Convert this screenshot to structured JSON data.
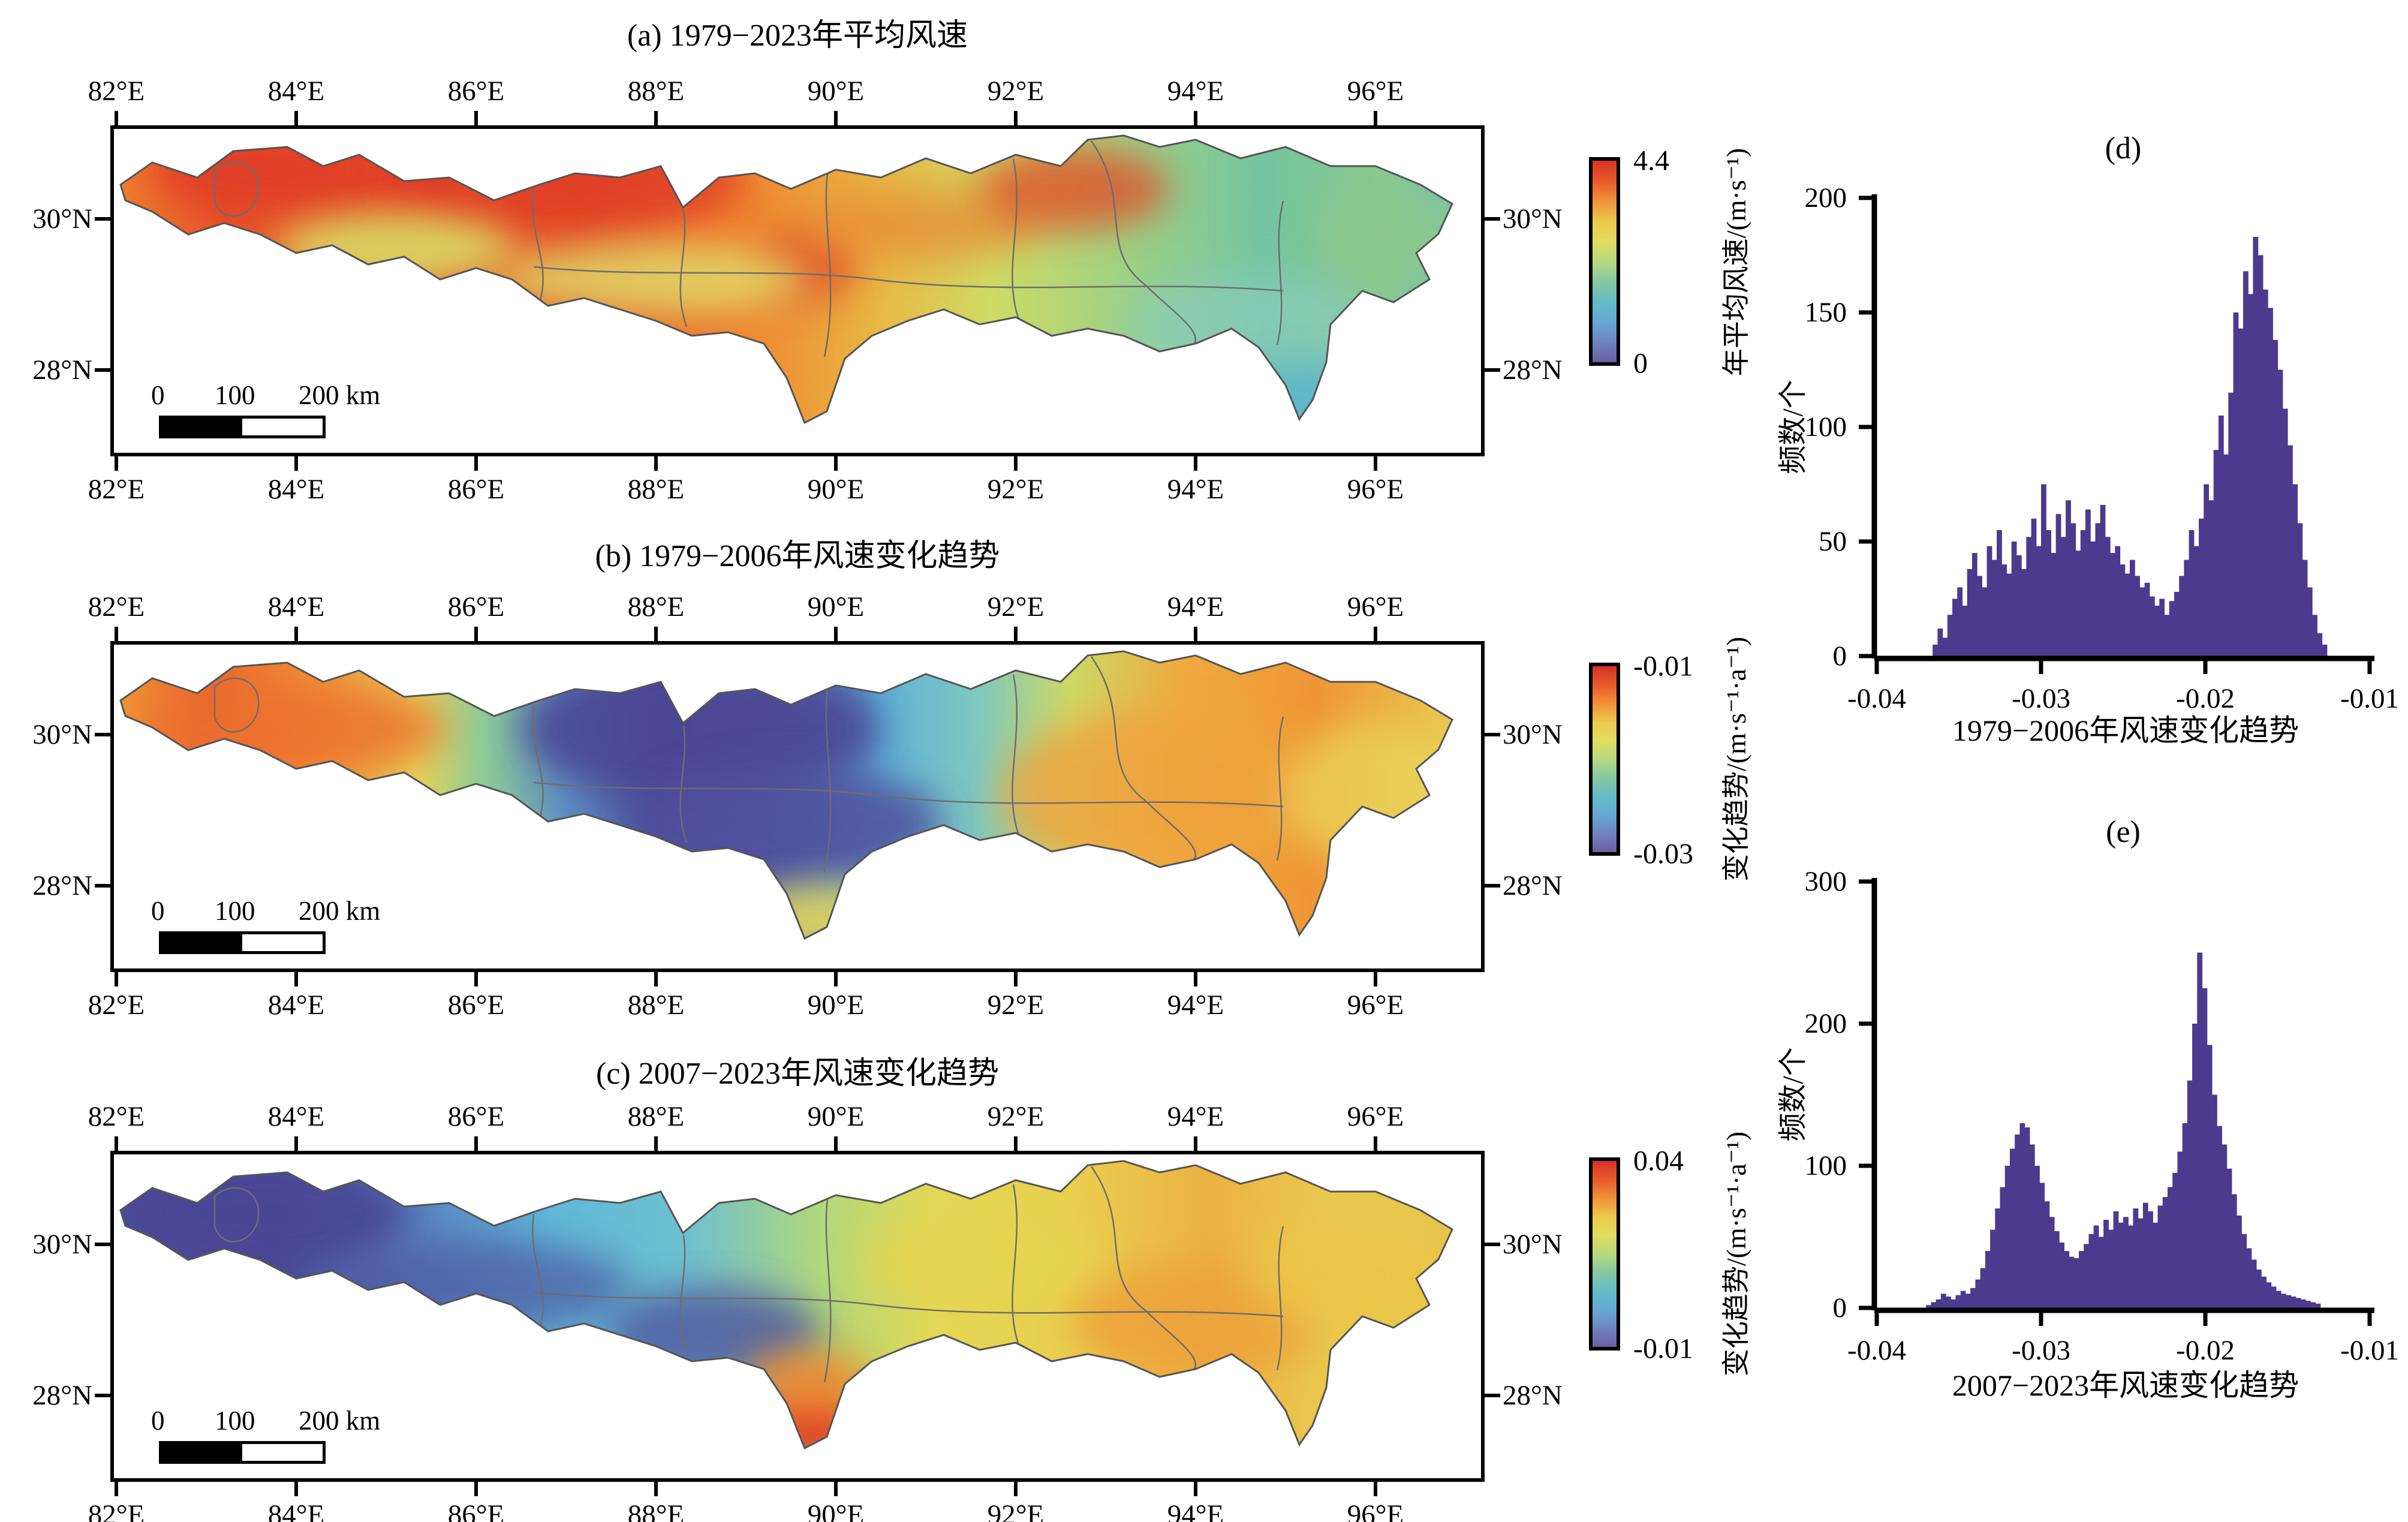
{
  "map_axes": {
    "lon_ticks": [
      "82°E",
      "84°E",
      "86°E",
      "88°E",
      "90°E",
      "92°E",
      "94°E",
      "96°E"
    ],
    "lat_ticks": [
      "30°N",
      "28°N"
    ],
    "scalebar_labels": [
      "0",
      "100",
      "200 km"
    ]
  },
  "colorbar_gradient": [
    "#d63227",
    "#e85a2b",
    "#f0913a",
    "#ecc94e",
    "#e2dd5f",
    "#b5d981",
    "#86c8a2",
    "#62bcc8",
    "#64a9d4",
    "#7184bd",
    "#6a5fa3"
  ],
  "histogram_color": "#4c3a8e",
  "chart_data": [
    {
      "type": "heatmap",
      "id": "a",
      "title": "(a) 1979−2023年平均风速",
      "colorbar": {
        "min": 0,
        "max": 4.4,
        "min_label": "0",
        "max_label": "4.4",
        "unit": "年平均风速/(m·s⁻¹)"
      },
      "lon_ticks": [
        "82°E",
        "84°E",
        "86°E",
        "88°E",
        "90°E",
        "92°E",
        "94°E",
        "96°E"
      ],
      "lat_ticks": [
        "30°N",
        "28°N"
      ],
      "pattern": "西部与中部年平均风速高(红橙色), 东部较低(绿色至青色), 河谷呈黄绿色条带",
      "fill_stops": [
        [
          "0%",
          "#ef8230"
        ],
        [
          "8%",
          "#e65129"
        ],
        [
          "20%",
          "#eb6f2d"
        ],
        [
          "34%",
          "#e65629"
        ],
        [
          "46%",
          "#ef8531"
        ],
        [
          "56%",
          "#e8b844"
        ],
        [
          "64%",
          "#cfdb64"
        ],
        [
          "74%",
          "#9ed184"
        ],
        [
          "84%",
          "#74c4a0"
        ],
        [
          "93%",
          "#8bc98e"
        ],
        [
          "100%",
          "#5fb9c8"
        ]
      ],
      "patches": [
        {
          "cx": 320,
          "cy": 70,
          "rx": 260,
          "ry": 70,
          "color": "#e03a26",
          "o": 0.85
        },
        {
          "cx": 750,
          "cy": 90,
          "rx": 300,
          "ry": 80,
          "color": "#df3b26",
          "o": 0.8
        },
        {
          "cx": 1150,
          "cy": 230,
          "rx": 90,
          "ry": 60,
          "color": "#e14028",
          "o": 0.7
        },
        {
          "cx": 470,
          "cy": 200,
          "rx": 200,
          "ry": 55,
          "color": "#d8dd67",
          "o": 0.9
        },
        {
          "cx": 900,
          "cy": 250,
          "rx": 260,
          "ry": 60,
          "color": "#dfe06c",
          "o": 0.8
        },
        {
          "cx": 1350,
          "cy": 160,
          "rx": 200,
          "ry": 60,
          "color": "#e88a34",
          "o": 0.7
        },
        {
          "cx": 1600,
          "cy": 100,
          "rx": 160,
          "ry": 70,
          "color": "#e24a28",
          "o": 0.75
        },
        {
          "cx": 1900,
          "cy": 330,
          "rx": 220,
          "ry": 90,
          "color": "#8ccdc2",
          "o": 0.6
        },
        {
          "cx": 1990,
          "cy": 460,
          "rx": 120,
          "ry": 70,
          "color": "#5ab5d2",
          "o": 0.85
        },
        {
          "cx": 2150,
          "cy": 180,
          "rx": 140,
          "ry": 80,
          "color": "#8cc88c",
          "o": 0.8
        }
      ]
    },
    {
      "type": "heatmap",
      "id": "b",
      "title": "(b) 1979−2006年风速变化趋势",
      "colorbar": {
        "min": -0.03,
        "max": -0.01,
        "min_label": "-0.03",
        "max_label": "-0.01",
        "unit": "变化趋势/(m·s⁻¹·a⁻¹)"
      },
      "lon_ticks": [
        "82°E",
        "84°E",
        "86°E",
        "88°E",
        "90°E",
        "92°E",
        "94°E",
        "96°E"
      ],
      "lat_ticks": [
        "30°N",
        "28°N"
      ],
      "pattern": "西部下降趋势弱(橙红色), 中部88—90°E下降最强(深蓝紫色), 东部趋势弱(橙色)",
      "fill_stops": [
        [
          "0%",
          "#f0993a"
        ],
        [
          "7%",
          "#ea622c"
        ],
        [
          "15%",
          "#f0993a"
        ],
        [
          "22%",
          "#e6d45a"
        ],
        [
          "27%",
          "#8fcb96"
        ],
        [
          "33%",
          "#5e8fc2"
        ],
        [
          "40%",
          "#4c4a96"
        ],
        [
          "48%",
          "#5562ac"
        ],
        [
          "56%",
          "#5fb2d8"
        ],
        [
          "63%",
          "#7ec7c0"
        ],
        [
          "70%",
          "#cdd866"
        ],
        [
          "78%",
          "#eeab3f"
        ],
        [
          "88%",
          "#ef9636"
        ],
        [
          "100%",
          "#e8d25a"
        ]
      ],
      "patches": [
        {
          "cx": 980,
          "cy": 140,
          "rx": 300,
          "ry": 120,
          "color": "#4b4795",
          "o": 0.9
        },
        {
          "cx": 1120,
          "cy": 300,
          "rx": 260,
          "ry": 100,
          "color": "#4f4f9d",
          "o": 0.85
        },
        {
          "cx": 300,
          "cy": 140,
          "rx": 250,
          "ry": 80,
          "color": "#ec6f2d",
          "o": 0.8
        },
        {
          "cx": 1180,
          "cy": 460,
          "rx": 140,
          "ry": 60,
          "color": "#e3d75c",
          "o": 0.9
        },
        {
          "cx": 1740,
          "cy": 250,
          "rx": 260,
          "ry": 140,
          "color": "#f0a23c",
          "o": 0.8
        },
        {
          "cx": 2100,
          "cy": 250,
          "rx": 150,
          "ry": 120,
          "color": "#e8d85c",
          "o": 0.7
        }
      ]
    },
    {
      "type": "heatmap",
      "id": "c",
      "title": "(c) 2007−2023年风速变化趋势",
      "colorbar": {
        "min": -0.01,
        "max": 0.04,
        "min_label": "-0.01",
        "max_label": "0.04",
        "unit": "变化趋势/(m·s⁻¹·a⁻¹)"
      },
      "lon_ticks": [
        "82°E",
        "84°E",
        "86°E",
        "88°E",
        "90°E",
        "92°E",
        "94°E",
        "96°E"
      ],
      "lat_ticks": [
        "30°N",
        "28°N"
      ],
      "pattern": "西部深蓝紫色(下降), 中部青蓝色, 东部黄橙色(上升), 约89.5°E南缘有红色强上升斑块",
      "fill_stops": [
        [
          "0%",
          "#4e4d9b"
        ],
        [
          "12%",
          "#4c4a98"
        ],
        [
          "22%",
          "#5a85c2"
        ],
        [
          "32%",
          "#5fb9d9"
        ],
        [
          "42%",
          "#6fc0cf"
        ],
        [
          "52%",
          "#b2d87a"
        ],
        [
          "60%",
          "#e2d957"
        ],
        [
          "70%",
          "#e9cf4e"
        ],
        [
          "80%",
          "#ecb242"
        ],
        [
          "90%",
          "#e9cb50"
        ],
        [
          "100%",
          "#e5c348"
        ]
      ],
      "patches": [
        {
          "cx": 250,
          "cy": 100,
          "rx": 240,
          "ry": 90,
          "color": "#4a4795",
          "o": 0.9
        },
        {
          "cx": 600,
          "cy": 220,
          "rx": 260,
          "ry": 80,
          "color": "#5058a2",
          "o": 0.7
        },
        {
          "cx": 1000,
          "cy": 300,
          "rx": 180,
          "ry": 80,
          "color": "#4f549f",
          "o": 0.8
        },
        {
          "cx": 1160,
          "cy": 450,
          "rx": 90,
          "ry": 70,
          "color": "#e23b22",
          "o": 0.95
        },
        {
          "cx": 1160,
          "cy": 380,
          "rx": 110,
          "ry": 60,
          "color": "#ee8c33",
          "o": 0.8
        },
        {
          "cx": 1450,
          "cy": 180,
          "rx": 200,
          "ry": 80,
          "color": "#e6d44f",
          "o": 0.8
        },
        {
          "cx": 1800,
          "cy": 280,
          "rx": 200,
          "ry": 100,
          "color": "#eda03b",
          "o": 0.8
        },
        {
          "cx": 2050,
          "cy": 200,
          "rx": 160,
          "ry": 90,
          "color": "#ecc447",
          "o": 0.8
        }
      ]
    },
    {
      "type": "bar",
      "id": "d",
      "title": "(d)",
      "xlabel": "1979−2006年风速变化趋势",
      "ylabel": "频数/个",
      "xlim": [
        -0.04,
        -0.01
      ],
      "ylim": [
        0,
        200
      ],
      "x_tick_labels": [
        "-0.04",
        "-0.03",
        "-0.02",
        "-0.01"
      ],
      "y_tick_values": [
        0,
        50,
        100,
        150,
        200
      ],
      "bin_start": -0.0366,
      "bin_width": 0.0003,
      "values": [
        5,
        12,
        8,
        18,
        25,
        30,
        22,
        38,
        45,
        35,
        30,
        48,
        42,
        55,
        40,
        36,
        50,
        44,
        38,
        52,
        60,
        48,
        75,
        55,
        45,
        62,
        52,
        68,
        58,
        46,
        55,
        64,
        50,
        58,
        66,
        52,
        45,
        48,
        40,
        36,
        42,
        35,
        30,
        32,
        26,
        22,
        25,
        18,
        24,
        28,
        35,
        42,
        55,
        48,
        60,
        75,
        68,
        90,
        105,
        88,
        115,
        150,
        143,
        168,
        158,
        183,
        175,
        160,
        152,
        138,
        125,
        108,
        92,
        75,
        58,
        42,
        30,
        18,
        10,
        5
      ]
    },
    {
      "type": "bar",
      "id": "e",
      "title": "(e)",
      "xlabel": "2007−2023年风速变化趋势",
      "ylabel": "频数/个",
      "xlim": [
        -0.04,
        -0.01
      ],
      "ylim": [
        0,
        300
      ],
      "x_tick_labels": [
        "-0.04",
        "-0.03",
        "-0.02",
        "-0.01"
      ],
      "y_tick_values": [
        0,
        100,
        200,
        300
      ],
      "bin_start": -0.037,
      "bin_width": 0.0003,
      "values": [
        2,
        4,
        6,
        10,
        8,
        6,
        9,
        12,
        10,
        14,
        20,
        28,
        40,
        55,
        70,
        85,
        100,
        112,
        122,
        130,
        127,
        115,
        100,
        88,
        75,
        64,
        54,
        46,
        40,
        36,
        35,
        40,
        45,
        52,
        58,
        50,
        62,
        55,
        68,
        60,
        64,
        58,
        70,
        63,
        74,
        68,
        60,
        72,
        78,
        85,
        95,
        110,
        130,
        160,
        200,
        250,
        225,
        185,
        150,
        128,
        115,
        98,
        80,
        65,
        52,
        42,
        34,
        27,
        22,
        18,
        15,
        12,
        10,
        9,
        8,
        7,
        6,
        5,
        4,
        3
      ]
    }
  ]
}
